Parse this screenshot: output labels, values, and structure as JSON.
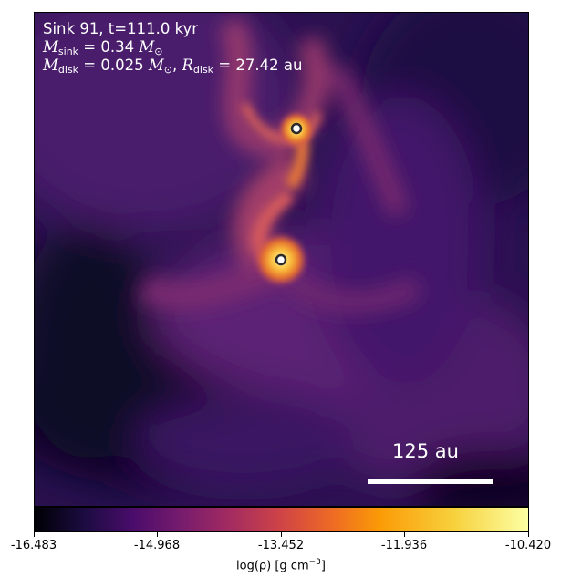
{
  "annotations": {
    "line1": "Sink 91, t=111.0 kyr",
    "line2_prefix": "M",
    "line2_sub": "sink",
    "line2_value": " = 0.34 ",
    "line2_unit": "M",
    "line2_unit_sub": "⊙",
    "line3_prefix": "M",
    "line3_sub": "disk",
    "line3_value": " = 0.025 ",
    "line3_unit": "M",
    "line3_unit_sub": "⊙",
    "line3_sep": ", ",
    "line3_r": "R",
    "line3_r_sub": "disk",
    "line3_r_value": " = 27.42 au"
  },
  "scale_bar": {
    "label": "125 au"
  },
  "colorbar": {
    "colormap": "inferno",
    "range": [
      -16.483,
      -10.42
    ],
    "ticks": [
      "-16.483",
      "-14.968",
      "-13.452",
      "-11.936",
      "-10.420"
    ],
    "label_prefix": "log(ρ) [g cm",
    "label_exp": "−3",
    "label_suffix": "]"
  },
  "colors": {
    "background_dark": "#1c0d3e",
    "filament": "#c24f66",
    "hot": "#fcd25a",
    "sink_marker_fill": "#ffffff",
    "sink_marker_edge": "#2a2a2a"
  }
}
